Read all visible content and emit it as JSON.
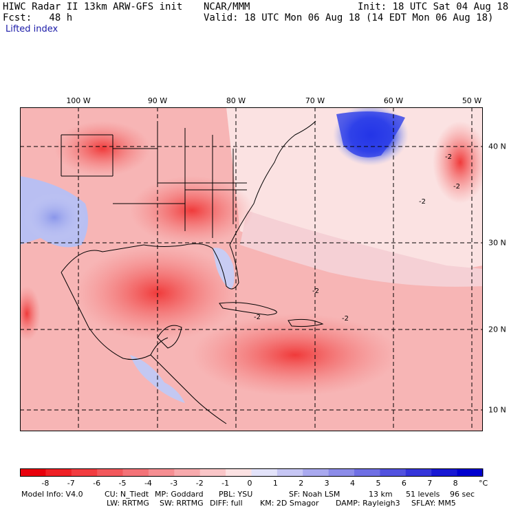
{
  "header": {
    "left_line1": "HIWC Radar II 13km ARW-GFS init",
    "left_line2": "Fcst:   48 h",
    "field_name": "Lifted index",
    "center_label": "NCAR/MMM",
    "init": "Init: 18 UTC Sat 04 Aug 18",
    "valid": "Valid: 18 UTC Mon 06 Aug 18 (14 EDT Mon 06 Aug 18)"
  },
  "map": {
    "longitude_labels": [
      "100 W",
      "90 W",
      "80 W",
      "70 W",
      "60 W",
      "50 W"
    ],
    "latitude_labels": [
      "40 N",
      "30 N",
      "20 N",
      "10 N"
    ],
    "contour_labels": [
      "-2",
      "-2",
      "-2",
      "-2",
      "-2",
      "-2"
    ]
  },
  "colorbar": {
    "tick_labels": [
      "-8",
      "-7",
      "-6",
      "-5",
      "-4",
      "-3",
      "-2",
      "-1",
      "0",
      "1",
      "2",
      "3",
      "4",
      "5",
      "6",
      "7",
      "8"
    ],
    "unit": "°C",
    "colors": [
      "#e8000c",
      "#ef2025",
      "#f23c40",
      "#f2585c",
      "#f47378",
      "#f68e92",
      "#f8aaad",
      "#fac6c8",
      "#fce2e3",
      "#e3e3fa",
      "#c6c6f4",
      "#a9a9ef",
      "#8c8ce9",
      "#6f6fe4",
      "#5252df",
      "#3535da",
      "#1818d4",
      "#0000cf"
    ]
  },
  "footer": {
    "line1_a": "Model Info: V4.0",
    "line1_b": "CU: N_Tiedt",
    "line1_c": "MP: Goddard",
    "line1_d": "PBL: YSU",
    "line1_e": "SF: Noah LSM",
    "line1_f": "13 km",
    "line1_g": "51 levels",
    "line1_h": "96 sec",
    "line2_a": "LW: RRTMG",
    "line2_b": "SW: RRTMG",
    "line2_c": "DIFF: full",
    "line2_d": "KM: 2D Smagor",
    "line2_e": "DAMP: Rayleigh3",
    "line2_f": "SFLAY: MM5"
  }
}
